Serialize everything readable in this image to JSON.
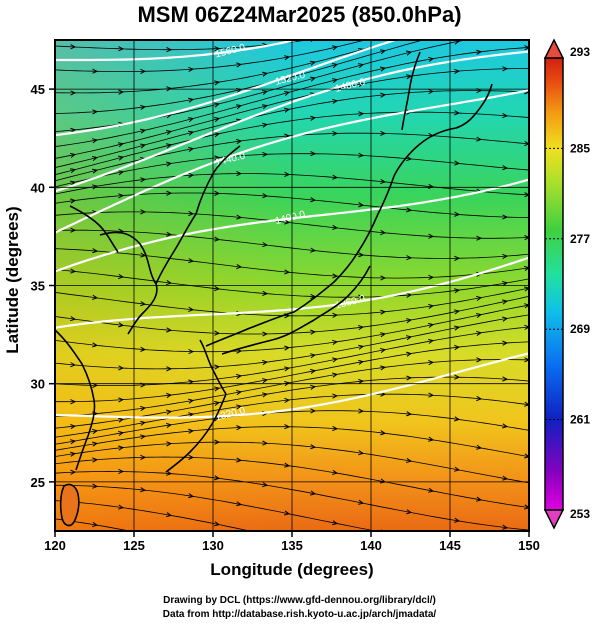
{
  "title": "MSM 06Z24Mar2025 (850.0hPa)",
  "x_axis": {
    "label": "Longitude (degrees)",
    "ticks": [
      120,
      125,
      130,
      135,
      140,
      145,
      150
    ],
    "tick_labels": [
      "120",
      "125",
      "130",
      "135",
      "140",
      "145",
      "150"
    ],
    "range": [
      120,
      150
    ]
  },
  "y_axis": {
    "label": "Latitude  (degrees)",
    "ticks": [
      25,
      30,
      35,
      40,
      45
    ],
    "tick_labels": [
      "25",
      "30",
      "35",
      "40",
      "45"
    ],
    "range": [
      22.5,
      47.5
    ]
  },
  "colorbar": {
    "min": 253,
    "max": 293,
    "tick_labels": [
      "293",
      "285",
      "277",
      "269",
      "261",
      "253"
    ],
    "tick_values": [
      293,
      285,
      277,
      269,
      261,
      253
    ],
    "colors": [
      "#e000e0",
      "#6a00b0",
      "#0a22c8",
      "#0d6ef0",
      "#12c0e0",
      "#22e0a0",
      "#40d040",
      "#aee02a",
      "#f0e020",
      "#f29a12",
      "#e84a12",
      "#d02010"
    ]
  },
  "contours": {
    "color": "#ffffff",
    "labels": [
      "1560.0",
      "1520.0",
      "1480.0",
      "1440.0",
      "1400.0",
      "1360.0",
      "1320.0"
    ]
  },
  "credits": {
    "line1": "Drawing by DCL (https://www.gfd-dennou.org/library/dcl/)",
    "line2": "Data from http://database.rish.kyoto-u.ac.jp/arch/jmadata/"
  }
}
